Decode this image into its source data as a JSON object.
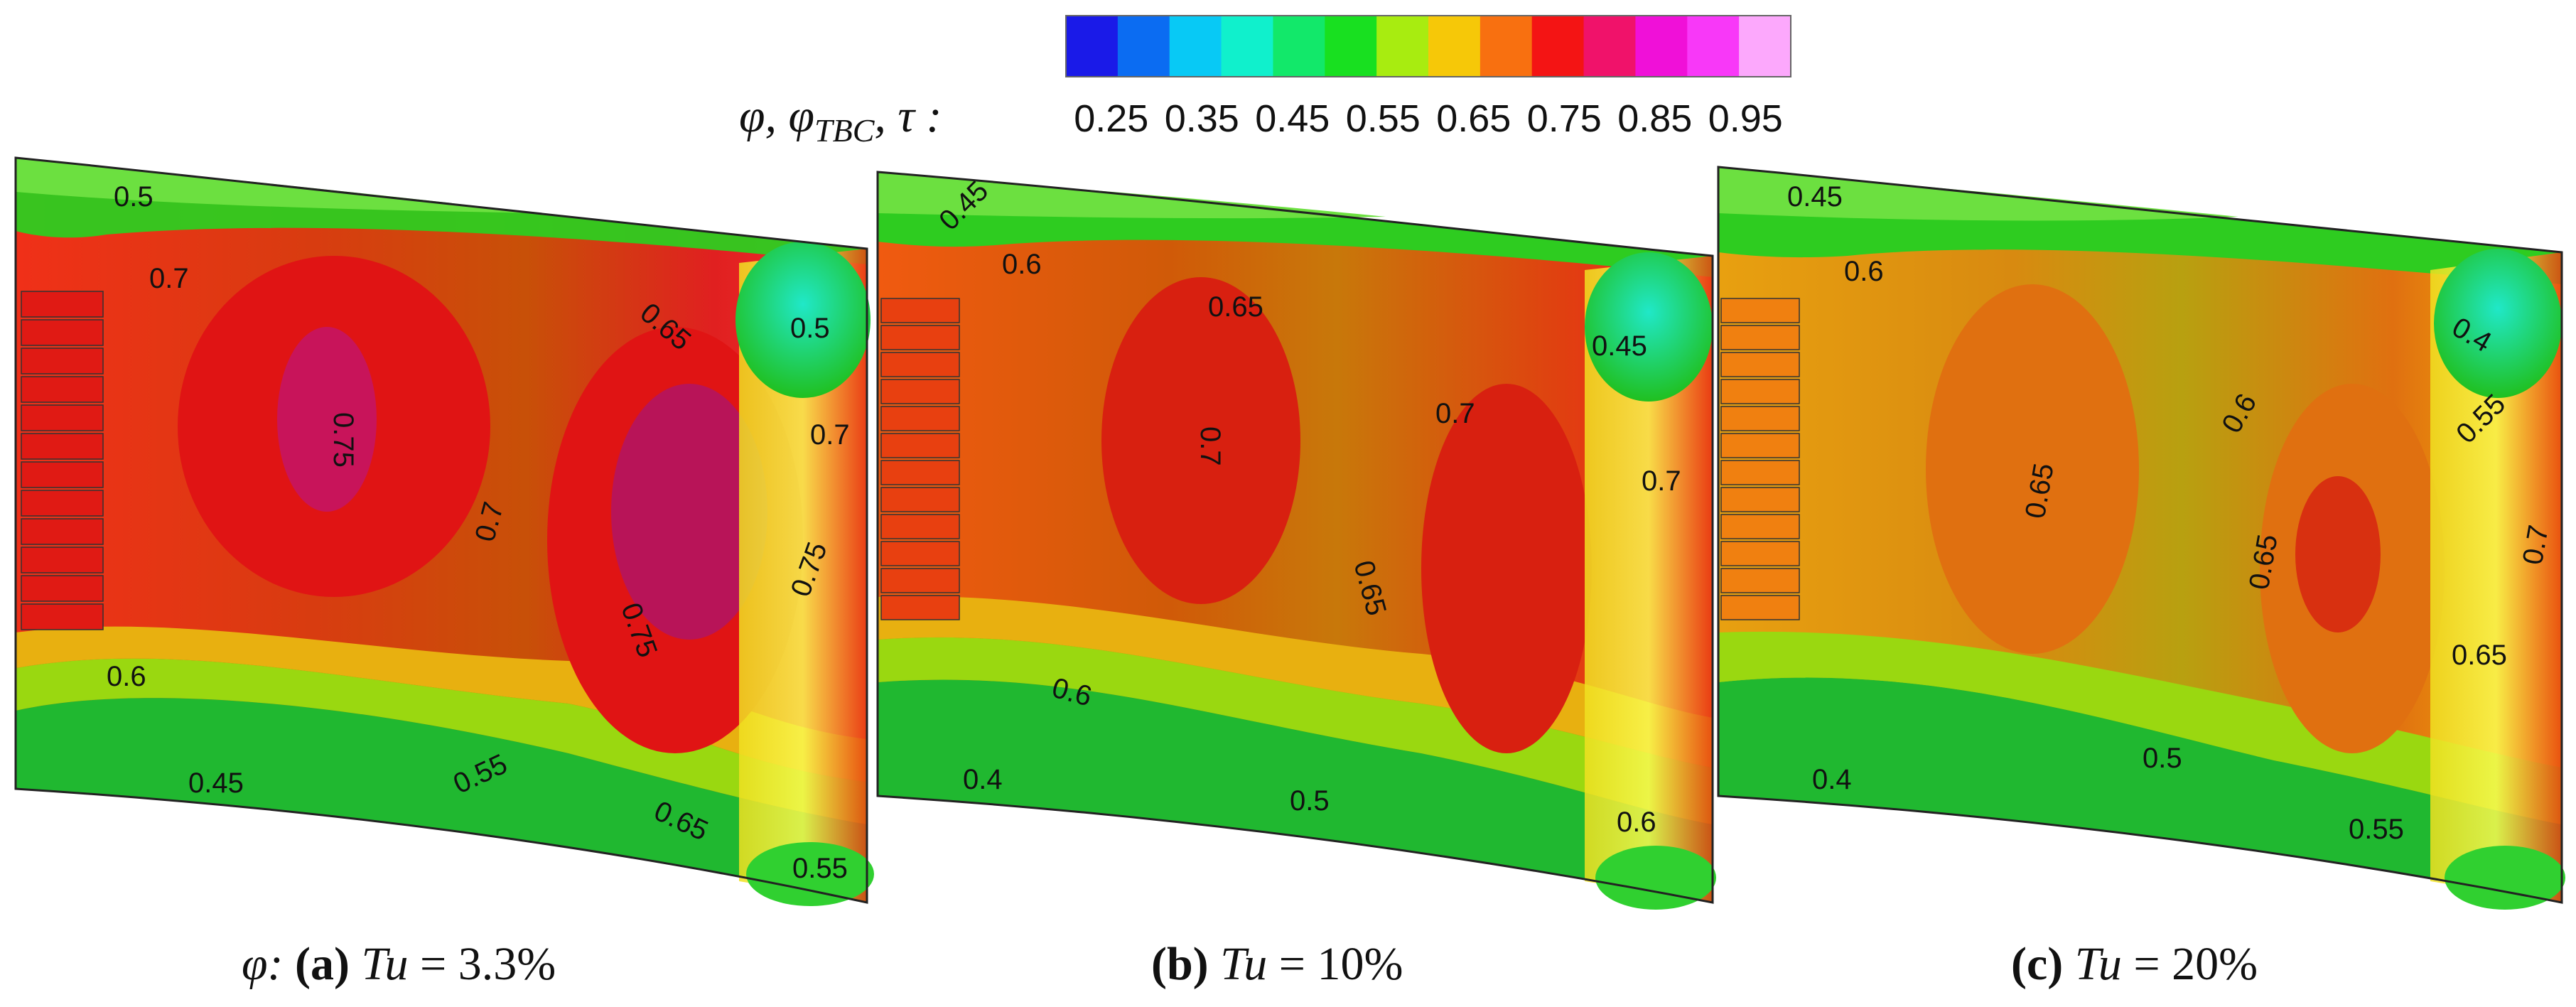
{
  "chart_data": {
    "type": "heatmap",
    "colorbar": {
      "title": "φ, φ",
      "title_subscript": "TBC",
      "title_tail": ", τ :",
      "colors": [
        "#1a1ae8",
        "#0b6cf2",
        "#08c9f5",
        "#10f0cc",
        "#12e86a",
        "#18e020",
        "#a8ec10",
        "#f6c808",
        "#f87010",
        "#f41414",
        "#f0126a",
        "#f010d8",
        "#f838f8",
        "#fca8fc"
      ],
      "tick_labels": [
        "0.25",
        "0.35",
        "0.45",
        "0.55",
        "0.65",
        "0.75",
        "0.85",
        "0.95"
      ],
      "range": [
        0.2,
        1.0
      ]
    },
    "panels": [
      {
        "label": "(a)",
        "prefix": "φ: ",
        "caption_var": "Tu",
        "caption_value": " = 3.3%",
        "contour_labels": [
          "0.5",
          "0.7",
          "0.75",
          "0.7",
          "0.65",
          "0.75",
          "0.5",
          "0.7",
          "0.75",
          "0.6",
          "0.45",
          "0.55",
          "0.65",
          "0.55"
        ]
      },
      {
        "label": "(b)",
        "prefix": "",
        "caption_var": "Tu",
        "caption_value": " = 10%",
        "contour_labels": [
          "0.45",
          "0.6",
          "0.65",
          "0.7",
          "0.7",
          "0.65",
          "0.45",
          "0.7",
          "0.6",
          "0.4",
          "0.5",
          "0.6"
        ]
      },
      {
        "label": "(c)",
        "prefix": "",
        "caption_var": "Tu",
        "caption_value": " = 20%",
        "contour_labels": [
          "0.45",
          "0.6",
          "0.65",
          "0.6",
          "0.65",
          "0.4",
          "0.55",
          "0.7",
          "0.65",
          "0.4",
          "0.5",
          "0.55"
        ]
      }
    ]
  }
}
